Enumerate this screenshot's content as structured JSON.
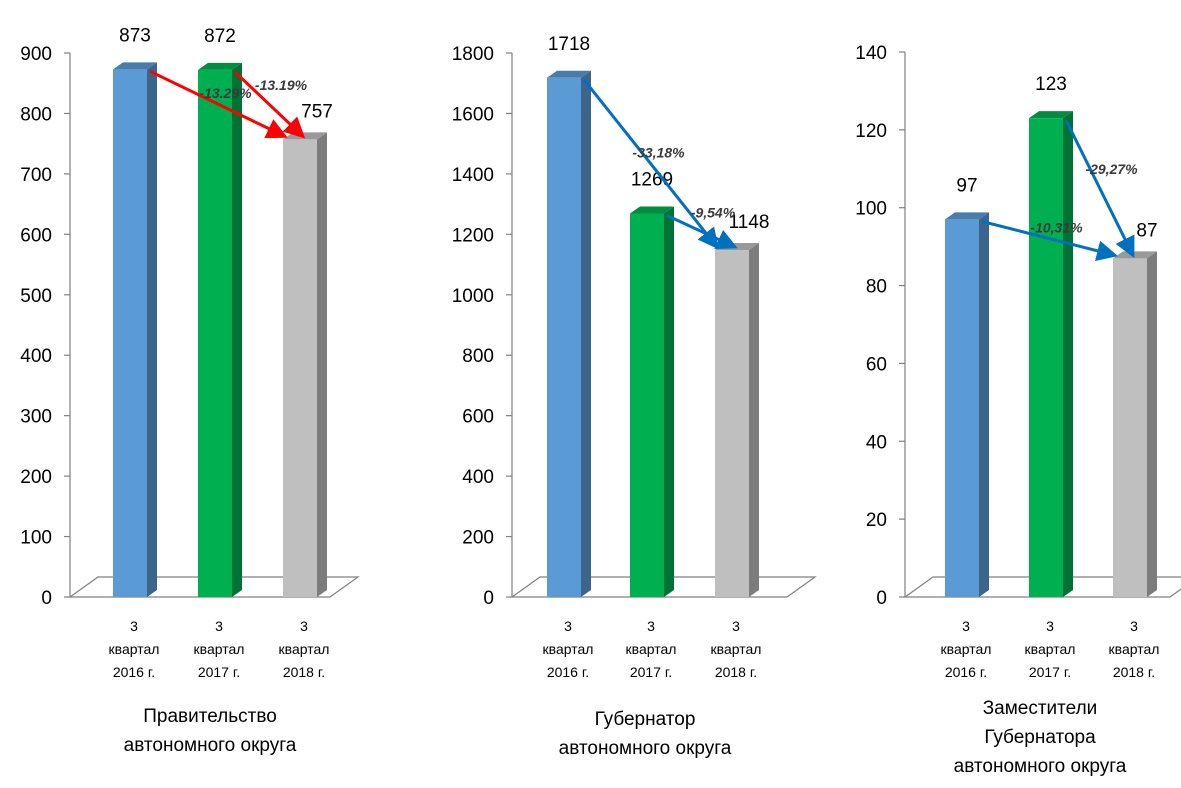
{
  "chart_data": [
    {
      "type": "bar",
      "title": "Правительство автономного округа",
      "title_lines": [
        "Правительство",
        "автономного округа"
      ],
      "categories": [
        [
          "3",
          "квартал",
          "2016 г."
        ],
        [
          "3",
          "квартал",
          "2017 г."
        ],
        [
          "3",
          "квартал",
          "2018 г."
        ]
      ],
      "values": [
        873,
        872,
        757
      ],
      "bar_colors": [
        "#5b9bd5",
        "#00b050",
        "#bfbfbf"
      ],
      "ylim": [
        0,
        900
      ],
      "yticks": [
        0,
        100,
        200,
        300,
        400,
        500,
        600,
        700,
        800,
        900
      ],
      "arrows": [
        {
          "from": 0,
          "to": 2,
          "label": "-13.29%",
          "color": "#ff0000"
        },
        {
          "from": 1,
          "to": 2,
          "label": "-13.19%",
          "color": "#ff0000"
        }
      ],
      "grid": false,
      "legend": "none"
    },
    {
      "type": "bar",
      "title": "Губернатор автономного округа",
      "title_lines": [
        "Губернатор",
        "автономного округа"
      ],
      "categories": [
        [
          "3",
          "квартал",
          "2016 г."
        ],
        [
          "3",
          "квартал",
          "2017 г."
        ],
        [
          "3",
          "квартал",
          "2018 г."
        ]
      ],
      "values": [
        1718,
        1269,
        1148
      ],
      "bar_colors": [
        "#5b9bd5",
        "#00b050",
        "#bfbfbf"
      ],
      "ylim": [
        0,
        1800
      ],
      "yticks": [
        0,
        200,
        400,
        600,
        800,
        1000,
        1200,
        1400,
        1600,
        1800
      ],
      "arrows": [
        {
          "from": 0,
          "to": 2,
          "label": "-33,18%",
          "color": "#0070c0"
        },
        {
          "from": 1,
          "to": 2,
          "label": "-9,54%",
          "color": "#0070c0"
        }
      ],
      "grid": false,
      "legend": "none"
    },
    {
      "type": "bar",
      "title": "Заместители Губернатора автономного округа",
      "title_lines": [
        "Заместители",
        "Губернатора",
        "автономного округа"
      ],
      "categories": [
        [
          "3",
          "квартал",
          "2016 г."
        ],
        [
          "3",
          "квартал",
          "2017 г."
        ],
        [
          "3",
          "квартал",
          "2018 г."
        ]
      ],
      "values": [
        97,
        123,
        87
      ],
      "bar_colors": [
        "#5b9bd5",
        "#00b050",
        "#bfbfbf"
      ],
      "ylim": [
        0,
        140
      ],
      "yticks": [
        0,
        20,
        40,
        60,
        80,
        100,
        120,
        140
      ],
      "arrows": [
        {
          "from": 0,
          "to": 2,
          "label": "-10,31%",
          "color": "#0070c0"
        },
        {
          "from": 1,
          "to": 2,
          "label": "-29,27%",
          "color": "#0070c0"
        }
      ],
      "grid": false,
      "legend": "none"
    }
  ]
}
